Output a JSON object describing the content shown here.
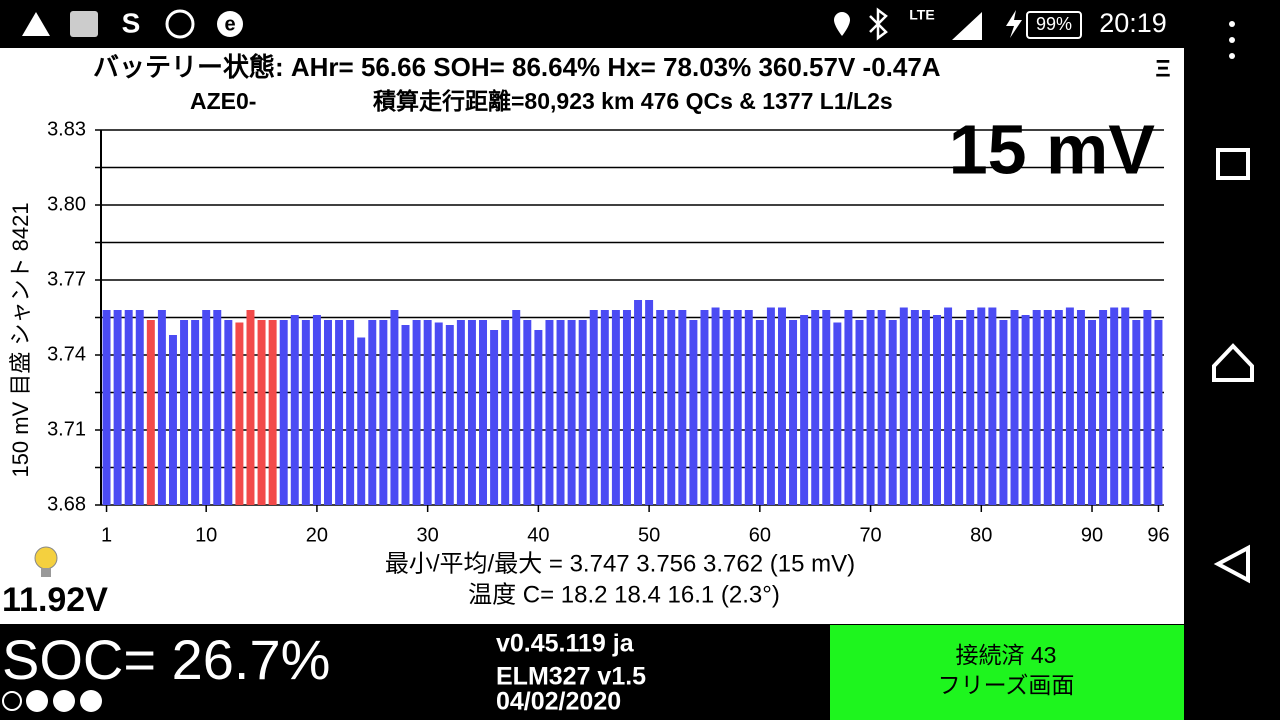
{
  "status_bar": {
    "network": "LTE",
    "battery": "99%",
    "time": "20:19"
  },
  "header": {
    "line1": "バッテリー状態:  AHr= 56.66  SOH= 86.64%   Hx= 78.03%   360.57V -0.47A",
    "menu": "Ξ",
    "model": "AZE0-",
    "line2": "積算走行距離=80,923 km  476 QCs & 1377 L1/L2s"
  },
  "chart_data": {
    "type": "bar",
    "ylabel": "150 mV 目盛  シャント 8421",
    "annotation": "15 mV",
    "x": [
      1,
      2,
      3,
      4,
      5,
      6,
      7,
      8,
      9,
      10,
      11,
      12,
      13,
      14,
      15,
      16,
      17,
      18,
      19,
      20,
      21,
      22,
      23,
      24,
      25,
      26,
      27,
      28,
      29,
      30,
      31,
      32,
      33,
      34,
      35,
      36,
      37,
      38,
      39,
      40,
      41,
      42,
      43,
      44,
      45,
      46,
      47,
      48,
      49,
      50,
      51,
      52,
      53,
      54,
      55,
      56,
      57,
      58,
      59,
      60,
      61,
      62,
      63,
      64,
      65,
      66,
      67,
      68,
      69,
      70,
      71,
      72,
      73,
      74,
      75,
      76,
      77,
      78,
      79,
      80,
      81,
      82,
      83,
      84,
      85,
      86,
      87,
      88,
      89,
      90,
      91,
      92,
      93,
      94,
      95,
      96
    ],
    "values": [
      3.758,
      3.758,
      3.758,
      3.758,
      3.754,
      3.758,
      3.748,
      3.754,
      3.754,
      3.758,
      3.758,
      3.754,
      3.753,
      3.758,
      3.754,
      3.754,
      3.754,
      3.756,
      3.754,
      3.756,
      3.754,
      3.754,
      3.754,
      3.747,
      3.754,
      3.754,
      3.758,
      3.752,
      3.754,
      3.754,
      3.753,
      3.752,
      3.754,
      3.754,
      3.754,
      3.75,
      3.754,
      3.758,
      3.754,
      3.75,
      3.754,
      3.754,
      3.754,
      3.754,
      3.758,
      3.758,
      3.758,
      3.758,
      3.762,
      3.762,
      3.758,
      3.758,
      3.758,
      3.754,
      3.758,
      3.759,
      3.758,
      3.758,
      3.758,
      3.754,
      3.759,
      3.759,
      3.754,
      3.756,
      3.758,
      3.758,
      3.753,
      3.758,
      3.754,
      3.758,
      3.758,
      3.754,
      3.759,
      3.758,
      3.758,
      3.756,
      3.759,
      3.754,
      3.758,
      3.759,
      3.759,
      3.754,
      3.758,
      3.756,
      3.758,
      3.758,
      3.758,
      3.759,
      3.758,
      3.754,
      3.758,
      3.759,
      3.759,
      3.754,
      3.758,
      3.754
    ],
    "color": "#4b4bf3",
    "highlight_cells": [
      5,
      13,
      14,
      15,
      16
    ],
    "highlight_color": "#f24a4a",
    "xlim": [
      0.5,
      96.5
    ],
    "xticks": [
      1,
      10,
      20,
      30,
      40,
      50,
      60,
      70,
      80,
      90,
      96
    ],
    "ylim": [
      3.68,
      3.83
    ],
    "yticks": [
      {
        "value": 3.68,
        "label": "3.68"
      },
      3.71,
      3.74,
      3.77,
      {
        "value": 3.8,
        "label": "3.80"
      },
      3.83
    ],
    "ygrid": [
      3.695,
      3.725,
      3.755,
      3.785,
      3.815
    ],
    "grid": true
  },
  "stats": {
    "voltages": "最小/平均/最大 = 3.747 3.756 3.762  (15 mV)",
    "temperature": "温度 C= 18.2  18.4  16.1  (2.3°)"
  },
  "aux_battery": "11.92V",
  "footer": {
    "soc": "SOC= 26.7%",
    "version": "v0.45.119 ja",
    "adapter": "ELM327 v1.5",
    "date": "04/02/2020",
    "connection": "接続済 43",
    "mode": "フリーズ画面"
  }
}
